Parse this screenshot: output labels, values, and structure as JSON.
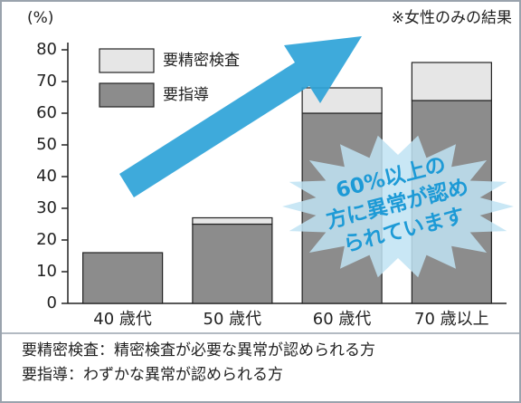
{
  "chart_data": {
    "type": "stacked-bar",
    "y_label": "(%)",
    "note": "※女性のみの結果",
    "categories": [
      "40 歳代",
      "50 歳代",
      "60 歳代",
      "70 歳以上"
    ],
    "series": [
      {
        "name": "要指導",
        "color": "#8c8c8c",
        "values": [
          16,
          25,
          60,
          64
        ]
      },
      {
        "name": "要精密検査",
        "color": "#e6e6e6",
        "values": [
          0,
          2,
          8,
          12
        ]
      }
    ],
    "ylim": [
      0,
      80
    ],
    "yticks": [
      0,
      10,
      20,
      30,
      40,
      50,
      60,
      70,
      80
    ],
    "annotation": [
      "60%以上の",
      "方に異常が認め",
      "られています"
    ],
    "footnotes": [
      "要精密検査：精密検査が必要な異常が認められる方",
      "要指導：わずかな異常が認められる方"
    ]
  }
}
